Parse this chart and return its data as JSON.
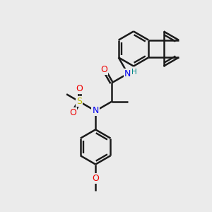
{
  "bg_color": "#ebebeb",
  "bond_color": "#1a1a1a",
  "bond_width": 1.8,
  "dbo": 0.06,
  "atom_colors": {
    "N": "#0000ee",
    "O": "#ee0000",
    "S": "#bbbb00",
    "H": "#008888",
    "C": "#1a1a1a"
  },
  "figsize": [
    3.0,
    3.0
  ],
  "dpi": 100
}
